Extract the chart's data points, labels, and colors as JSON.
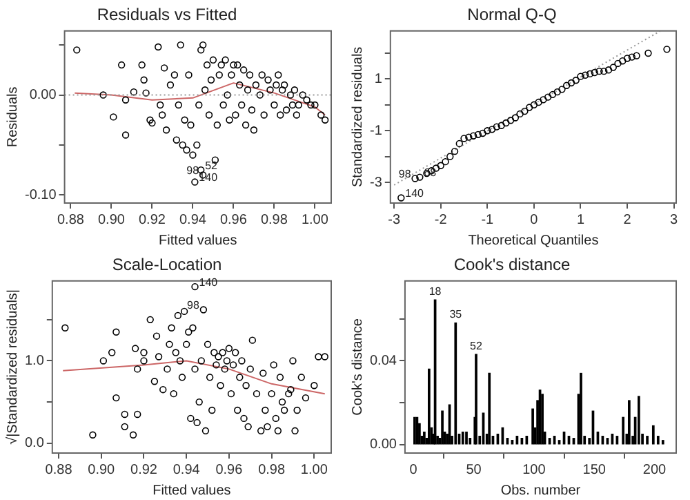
{
  "chart_data": [
    {
      "type": "scatter",
      "title": "Residuals vs Fitted",
      "xlabel": "Fitted values",
      "ylabel": "Residuals",
      "xlim": [
        0.877,
        1.008
      ],
      "ylim": [
        -0.108,
        0.064
      ],
      "xticks": [
        {
          "value": 0.88,
          "label": "0.88"
        },
        {
          "value": 0.9,
          "label": "0.90"
        },
        {
          "value": 0.92,
          "label": "0.92"
        },
        {
          "value": 0.94,
          "label": "0.94"
        },
        {
          "value": 0.96,
          "label": "0.96"
        },
        {
          "value": 0.98,
          "label": "0.98"
        },
        {
          "value": 1.0,
          "label": "1.00"
        }
      ],
      "yticks": [
        {
          "value": -0.1,
          "label": "-0.10"
        },
        {
          "value": -0.05,
          "label": null
        },
        {
          "value": 0,
          "label": "0.00"
        },
        {
          "value": 0.05,
          "label": null
        }
      ],
      "series": [
        {
          "type": "scatter",
          "marker": "circle",
          "color": "#000000",
          "x": [
            0.883,
            0.896,
            0.901,
            0.905,
            0.907,
            0.907,
            0.911,
            0.915,
            0.916,
            0.917,
            0.919,
            0.92,
            0.923,
            0.924,
            0.925,
            0.926,
            0.927,
            0.929,
            0.931,
            0.932,
            0.933,
            0.934,
            0.935,
            0.936,
            0.937,
            0.938,
            0.939,
            0.94,
            0.941,
            0.942,
            0.943,
            0.944,
            0.944,
            0.945,
            0.945,
            0.946,
            0.947,
            0.948,
            0.949,
            0.95,
            0.951,
            0.952,
            0.953,
            0.954,
            0.955,
            0.956,
            0.957,
            0.958,
            0.959,
            0.96,
            0.961,
            0.962,
            0.963,
            0.964,
            0.965,
            0.966,
            0.967,
            0.968,
            0.969,
            0.97,
            0.971,
            0.973,
            0.974,
            0.975,
            0.977,
            0.978,
            0.98,
            0.981,
            0.982,
            0.983,
            0.984,
            0.985,
            0.986,
            0.988,
            0.989,
            0.99,
            0.991,
            0.992,
            0.994,
            0.996,
            0.998,
            1.0,
            1.003,
            1.005
          ],
          "values": [
            0.045,
            0,
            -0.022,
            0.03,
            -0.04,
            -0.005,
            0.003,
            0.03,
            0.015,
            0.002,
            -0.025,
            -0.028,
            0.048,
            -0.01,
            -0.02,
            0.027,
            -0.035,
            0.01,
            0.02,
            -0.045,
            -0.01,
            0.05,
            -0.05,
            -0.025,
            -0.055,
            0.02,
            -0.03,
            -0.06,
            -0.087,
            -0.05,
            -0.01,
            0.045,
            -0.075,
            0.05,
            -0.08,
            0.005,
            0.03,
            -0.02,
            0.015,
            0.035,
            -0.065,
            -0.03,
            0.02,
            0.03,
            -0.01,
            0.035,
            0,
            -0.025,
            0.02,
            0.03,
            -0.02,
            0.03,
            0.01,
            -0.01,
            0.025,
            -0.03,
            0.005,
            0.02,
            -0.015,
            -0.035,
            0.01,
            0,
            0.02,
            -0.02,
            0.015,
            0.005,
            -0.01,
            0.01,
            0.02,
            -0.02,
            0.005,
            0.01,
            -0.015,
            0,
            -0.01,
            0.005,
            -0.02,
            -0.01,
            0,
            -0.005,
            -0.01,
            -0.01,
            -0.02,
            -0.025
          ]
        },
        {
          "type": "line",
          "color": "#cc6666",
          "x": [
            0.882,
            0.9,
            0.92,
            0.94,
            0.96,
            0.98,
            1.0,
            1.005
          ],
          "values": [
            0.002,
            0,
            -0.005,
            -0.003,
            0.012,
            0.002,
            -0.012,
            -0.02
          ]
        }
      ],
      "ref_lines": [
        {
          "axis": "y",
          "value": 0,
          "color": "#999999",
          "line_style": "dotted"
        }
      ],
      "annotations": [
        {
          "text": "52",
          "x": 0.944,
          "y": -0.075
        },
        {
          "text": "98",
          "x": 0.945,
          "y": -0.08
        },
        {
          "text": "140",
          "x": 0.941,
          "y": -0.087
        }
      ]
    },
    {
      "type": "scatter",
      "title": "Normal Q-Q",
      "xlabel": "Theoretical Quantiles",
      "ylabel": "Standardized residuals",
      "xlim": [
        -3.08,
        3.05
      ],
      "ylim": [
        -3.8,
        2.86
      ],
      "xticks": [
        -3,
        -2,
        -1,
        0,
        1,
        2,
        3
      ],
      "yticks": [
        {
          "value": -3,
          "label": "-3"
        },
        {
          "value": -2,
          "label": null
        },
        {
          "value": -1,
          "label": "-1"
        },
        {
          "value": 0,
          "label": null
        },
        {
          "value": 1,
          "label": "1"
        },
        {
          "value": 2,
          "label": null
        }
      ],
      "series": [
        {
          "type": "scatter",
          "marker": "circle",
          "color": "#000000",
          "x": [
            -2.85,
            -2.55,
            -2.45,
            -2.3,
            -2.2,
            -2.1,
            -2,
            -1.9,
            -1.8,
            -1.7,
            -1.6,
            -1.5,
            -1.4,
            -1.3,
            -1.2,
            -1.1,
            -1,
            -0.9,
            -0.8,
            -0.7,
            -0.6,
            -0.5,
            -0.4,
            -0.3,
            -0.2,
            -0.1,
            0,
            0.1,
            0.2,
            0.3,
            0.4,
            0.5,
            0.6,
            0.7,
            0.8,
            0.9,
            1,
            1.1,
            1.2,
            1.3,
            1.4,
            1.5,
            1.6,
            1.7,
            1.8,
            1.9,
            2,
            2.1,
            2.2,
            2.45,
            2.85
          ],
          "values": [
            -3.6,
            -2.85,
            -2.8,
            -2.65,
            -2.55,
            -2.45,
            -2.35,
            -2.2,
            -2,
            -1.8,
            -1.5,
            -1.3,
            -1.25,
            -1.2,
            -1.15,
            -1.1,
            -1,
            -0.95,
            -0.85,
            -0.8,
            -0.7,
            -0.6,
            -0.5,
            -0.35,
            -0.25,
            -0.1,
            0,
            0.1,
            0.2,
            0.3,
            0.4,
            0.5,
            0.6,
            0.75,
            0.85,
            0.95,
            1.1,
            1.15,
            1.2,
            1.25,
            1.3,
            1.3,
            1.35,
            1.45,
            1.6,
            1.7,
            1.8,
            1.85,
            1.9,
            2,
            2.15
          ]
        },
        {
          "type": "line",
          "color": "#999999",
          "line_style": "dotted",
          "x": [
            -3,
            2.7
          ],
          "values": [
            -3.1,
            2.85
          ]
        }
      ],
      "annotations": [
        {
          "text": "140",
          "x": -2.85,
          "y": -3.6
        },
        {
          "text": "98",
          "x": -2.55,
          "y": -2.85
        },
        {
          "text": "68",
          "x": -2.45,
          "y": -2.8
        }
      ]
    },
    {
      "type": "scatter",
      "title": "Scale-Location",
      "xlabel": "Fitted values",
      "ylabel": "√|Standardized residuals|",
      "xlim": [
        0.877,
        1.008
      ],
      "ylim": [
        -0.12,
        1.97
      ],
      "xticks": [
        {
          "value": 0.88,
          "label": "0.88"
        },
        {
          "value": 0.9,
          "label": "0.90"
        },
        {
          "value": 0.92,
          "label": "0.92"
        },
        {
          "value": 0.94,
          "label": "0.94"
        },
        {
          "value": 0.96,
          "label": "0.96"
        },
        {
          "value": 0.98,
          "label": "0.98"
        },
        {
          "value": 1.0,
          "label": "1.00"
        }
      ],
      "yticks": [
        {
          "value": 0,
          "label": "0.0"
        },
        {
          "value": 0.5,
          "label": null
        },
        {
          "value": 1,
          "label": "1.0"
        },
        {
          "value": 1.5,
          "label": null
        }
      ],
      "series": [
        {
          "type": "scatter",
          "marker": "circle",
          "color": "#000000",
          "x": [
            0.883,
            0.896,
            0.901,
            0.905,
            0.907,
            0.907,
            0.911,
            0.911,
            0.915,
            0.916,
            0.917,
            0.917,
            0.92,
            0.92,
            0.923,
            0.925,
            0.926,
            0.927,
            0.929,
            0.931,
            0.932,
            0.933,
            0.934,
            0.935,
            0.936,
            0.937,
            0.938,
            0.939,
            0.94,
            0.941,
            0.942,
            0.943,
            0.944,
            0.945,
            0.946,
            0.947,
            0.948,
            0.949,
            0.95,
            0.951,
            0.952,
            0.953,
            0.954,
            0.955,
            0.956,
            0.957,
            0.958,
            0.959,
            0.96,
            0.961,
            0.962,
            0.963,
            0.964,
            0.965,
            0.966,
            0.967,
            0.968,
            0.969,
            0.97,
            0.971,
            0.973,
            0.975,
            0.976,
            0.977,
            0.978,
            0.98,
            0.981,
            0.982,
            0.983,
            0.984,
            0.985,
            0.986,
            0.988,
            0.989,
            0.99,
            0.991,
            0.992,
            0.994,
            0.996,
            1.0,
            1.002,
            1.005,
            0.944
          ],
          "values": [
            1.4,
            0.1,
            1,
            1.1,
            1.35,
            0.55,
            0.2,
            0.35,
            0.1,
            1.15,
            0.9,
            0.35,
            1.1,
            1,
            1.5,
            0.75,
            1.3,
            1.05,
            0.65,
            0.9,
            1.2,
            1.4,
            0.6,
            1.1,
            1.55,
            1,
            0.8,
            1.6,
            1.2,
            1.35,
            0.3,
            1.4,
            0.9,
            0.25,
            0.5,
            1,
            1.62,
            0.15,
            1.2,
            0.8,
            0.4,
            1.1,
            0.95,
            1.05,
            0.7,
            1.1,
            0.9,
            1,
            1.15,
            0.6,
            0.95,
            1.1,
            0.4,
            0.8,
            1,
            0.3,
            0.7,
            0.2,
            0.9,
            1.25,
            0.6,
            0.15,
            0.85,
            0.4,
            0.2,
            0.6,
            0.95,
            0.3,
            0.15,
            0.8,
            0.5,
            0.4,
            0.6,
            0.65,
            1,
            0.15,
            0.4,
            0.8,
            0.55,
            0.7,
            1.05,
            1.05,
            1.9
          ]
        },
        {
          "type": "line",
          "color": "#cc6666",
          "x": [
            0.882,
            0.92,
            0.94,
            0.96,
            0.98,
            1.005
          ],
          "values": [
            0.88,
            0.95,
            1,
            0.9,
            0.72,
            0.6
          ]
        }
      ],
      "annotations": [
        {
          "text": "140",
          "x": 0.944,
          "y": 1.9
        },
        {
          "text": "98",
          "x": 0.948,
          "y": 1.62
        }
      ]
    },
    {
      "type": "bar",
      "title": "Cook's distance",
      "xlabel": "Obs. number",
      "ylabel": "Cook's distance",
      "xlim": [
        -7,
        218
      ],
      "ylim": [
        -0.004,
        0.078
      ],
      "xticks": [
        0,
        50,
        100,
        150,
        200
      ],
      "yticks": [
        {
          "value": 0,
          "label": "0.00"
        },
        {
          "value": 0.02,
          "label": null
        },
        {
          "value": 0.04,
          "label": "0.04"
        },
        {
          "value": 0.06,
          "label": null
        }
      ],
      "series": [
        {
          "type": "bar",
          "color": "#000000",
          "x": [
            1,
            3,
            5,
            7,
            9,
            11,
            13,
            15,
            17,
            18,
            20,
            22,
            24,
            26,
            28,
            30,
            32,
            35,
            38,
            41,
            44,
            47,
            51,
            52,
            55,
            58,
            61,
            63,
            66,
            70,
            74,
            78,
            82,
            86,
            90,
            94,
            99,
            101,
            103,
            105,
            107,
            109,
            113,
            117,
            121,
            125,
            129,
            133,
            137,
            139,
            142,
            146,
            149,
            153,
            157,
            161,
            165,
            169,
            174,
            177,
            179,
            182,
            184,
            187,
            190,
            194,
            199,
            203,
            207
          ],
          "values": [
            0.013,
            0.013,
            0.01,
            0.004,
            0.006,
            0.003,
            0.036,
            0.008,
            0.005,
            0.069,
            0.004,
            0.003,
            0.016,
            0.006,
            0.005,
            0.019,
            0.004,
            0.058,
            0.005,
            0.006,
            0.006,
            0.003,
            0.013,
            0.043,
            0.004,
            0.015,
            0.005,
            0.034,
            0.004,
            0.005,
            0.008,
            0.003,
            0.002,
            0.004,
            0.003,
            0.004,
            0.017,
            0.008,
            0.021,
            0.026,
            0.024,
            0.006,
            0.003,
            0.004,
            0.002,
            0.006,
            0.004,
            0.003,
            0.024,
            0.034,
            0.004,
            0.003,
            0.016,
            0.006,
            0.004,
            0.003,
            0.005,
            0.004,
            0.013,
            0.005,
            0.021,
            0.004,
            0.013,
            0.023,
            0.005,
            0.004,
            0.009,
            0.004,
            0.002
          ]
        }
      ],
      "annotations": [
        {
          "text": "18",
          "x": 18,
          "y": 0.069
        },
        {
          "text": "35",
          "x": 35,
          "y": 0.058
        },
        {
          "text": "52",
          "x": 52,
          "y": 0.043
        }
      ]
    }
  ]
}
